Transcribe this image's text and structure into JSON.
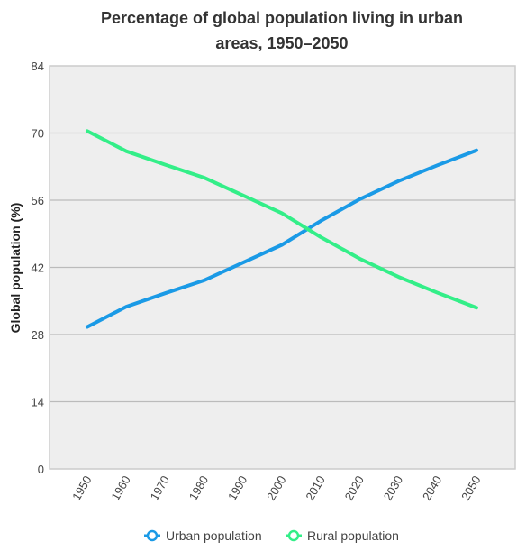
{
  "chart_data": {
    "type": "line",
    "title": [
      "Percentage of global population living in urban",
      "areas, 1950–2050"
    ],
    "xlabel": "",
    "ylabel": "Global population (%)",
    "x": [
      "1950",
      "1960",
      "1970",
      "1980",
      "1990",
      "2000",
      "2010",
      "2020",
      "2030",
      "2040",
      "2050"
    ],
    "ylim": [
      0,
      84
    ],
    "yticks": [
      "0",
      "14",
      "28",
      "42",
      "56",
      "70",
      "84"
    ],
    "grid": true,
    "legend_position": "bottom",
    "series": [
      {
        "name": "Urban population",
        "color": "#1a9ae6",
        "values": [
          29.6,
          33.8,
          36.6,
          39.3,
          43.0,
          46.7,
          51.7,
          56.2,
          60.0,
          63.3,
          66.4
        ]
      },
      {
        "name": "Rural population",
        "color": "#33ee88",
        "values": [
          70.4,
          66.2,
          63.4,
          60.7,
          57.0,
          53.3,
          48.3,
          43.8,
          40.0,
          36.7,
          33.6
        ]
      }
    ]
  }
}
